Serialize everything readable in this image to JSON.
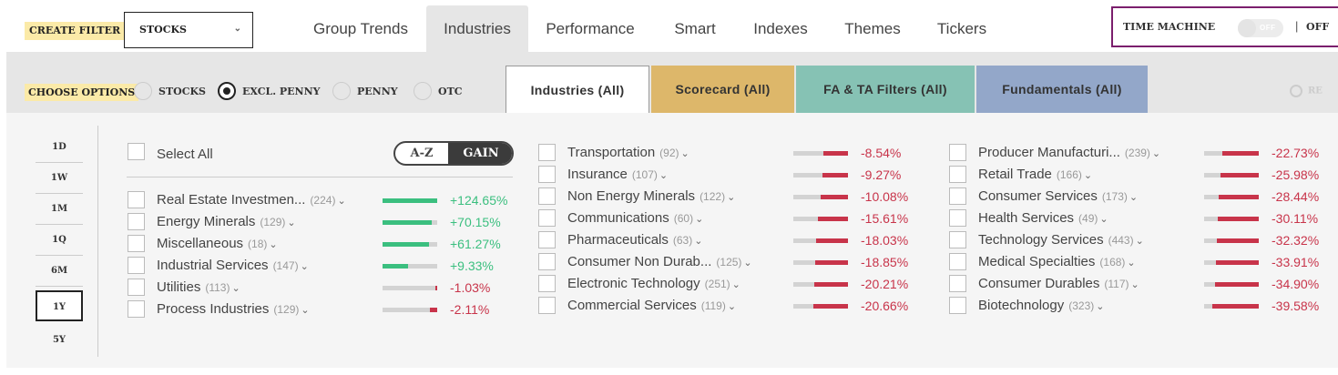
{
  "header": {
    "create_filter": "CREATE FILTER",
    "market_select": "STOCKS",
    "nav_tabs": [
      {
        "label": "Group Trends",
        "active": false
      },
      {
        "label": "Industries",
        "active": true
      },
      {
        "label": "Performance",
        "active": false
      },
      {
        "label": "Smart",
        "active": false
      },
      {
        "label": "Indexes",
        "active": false
      },
      {
        "label": "Themes",
        "active": false
      },
      {
        "label": "Tickers",
        "active": false
      }
    ],
    "time_machine": {
      "label": "TIME MACHINE",
      "toggle_text": "OFF",
      "status": "OFF"
    }
  },
  "options": {
    "choose_label": "CHOOSE OPTIONS",
    "radios": [
      {
        "label": "STOCKS",
        "checked": false
      },
      {
        "label": "EXCL. PENNY",
        "checked": true
      },
      {
        "label": "PENNY",
        "checked": false
      },
      {
        "label": "OTC",
        "checked": false
      }
    ],
    "filter_tabs": [
      {
        "label": "Industries (All)",
        "color": "#ffffff"
      },
      {
        "label": "Scorecard (All)",
        "color": "#ddb76a"
      },
      {
        "label": "FA & TA Filters (All)",
        "color": "#86c2b4"
      },
      {
        "label": "Fundamentals (All)",
        "color": "#93a7c9"
      }
    ],
    "reset_label": "RE"
  },
  "timeframes": {
    "items": [
      "1D",
      "1W",
      "1M",
      "1Q",
      "6M",
      "1Y",
      "5Y"
    ],
    "active": "1Y"
  },
  "list_controls": {
    "select_all": "Select All",
    "sort_az": "A-Z",
    "sort_gain": "GAIN",
    "active_sort": "GAIN"
  },
  "colors": {
    "positive": "#3bbf7f",
    "negative": "#c8344a"
  },
  "industries": {
    "col1": [
      {
        "name": "Real Estate Investmen...",
        "count": "(224)",
        "change": "+124.65%",
        "bar_fill": 1.0
      },
      {
        "name": "Energy Minerals",
        "count": "(129)",
        "change": "+70.15%",
        "bar_fill": 0.9
      },
      {
        "name": "Miscellaneous",
        "count": "(18)",
        "change": "+61.27%",
        "bar_fill": 0.85
      },
      {
        "name": "Industrial Services",
        "count": "(147)",
        "change": "+9.33%",
        "bar_fill": 0.47
      },
      {
        "name": "Utilities",
        "count": "(113)",
        "change": "-1.03%",
        "bar_fill": 0.03
      },
      {
        "name": "Process Industries",
        "count": "(129)",
        "change": "-2.11%",
        "bar_fill": 0.13
      }
    ],
    "col2": [
      {
        "name": "Transportation",
        "count": "(92)",
        "change": "-8.54%",
        "bar_fill": 0.45
      },
      {
        "name": "Insurance",
        "count": "(107)",
        "change": "-9.27%",
        "bar_fill": 0.47
      },
      {
        "name": "Non Energy Minerals",
        "count": "(122)",
        "change": "-10.08%",
        "bar_fill": 0.5
      },
      {
        "name": "Communications",
        "count": "(60)",
        "change": "-15.61%",
        "bar_fill": 0.55
      },
      {
        "name": "Pharmaceuticals",
        "count": "(63)",
        "change": "-18.03%",
        "bar_fill": 0.58
      },
      {
        "name": "Consumer Non Durab...",
        "count": "(125)",
        "change": "-18.85%",
        "bar_fill": 0.6
      },
      {
        "name": "Electronic Technology",
        "count": "(251)",
        "change": "-20.21%",
        "bar_fill": 0.62
      },
      {
        "name": "Commercial Services",
        "count": "(119)",
        "change": "-20.66%",
        "bar_fill": 0.63
      }
    ],
    "col3": [
      {
        "name": "Producer Manufacturi...",
        "count": "(239)",
        "change": "-22.73%",
        "bar_fill": 0.66
      },
      {
        "name": "Retail Trade",
        "count": "(166)",
        "change": "-25.98%",
        "bar_fill": 0.7
      },
      {
        "name": "Consumer Services",
        "count": "(173)",
        "change": "-28.44%",
        "bar_fill": 0.73
      },
      {
        "name": "Health Services",
        "count": "(49)",
        "change": "-30.11%",
        "bar_fill": 0.75
      },
      {
        "name": "Technology Services",
        "count": "(443)",
        "change": "-32.32%",
        "bar_fill": 0.77
      },
      {
        "name": "Medical Specialties",
        "count": "(168)",
        "change": "-33.91%",
        "bar_fill": 0.78
      },
      {
        "name": "Consumer Durables",
        "count": "(117)",
        "change": "-34.90%",
        "bar_fill": 0.8
      },
      {
        "name": "Biotechnology",
        "count": "(323)",
        "change": "-39.58%",
        "bar_fill": 0.85
      }
    ]
  }
}
